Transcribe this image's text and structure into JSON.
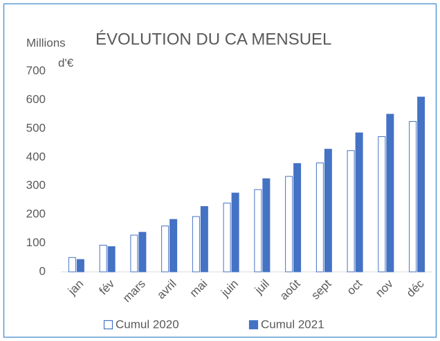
{
  "chart_data": {
    "type": "bar",
    "title": "ÉVOLUTION DU CA MENSUEL",
    "ylabel": [
      "Millions",
      "d'€"
    ],
    "categories": [
      "jan",
      "fév",
      "mars",
      "avril",
      "mai",
      "juin",
      "juil",
      "août",
      "sept",
      "oct",
      "nov",
      "déc"
    ],
    "series": [
      {
        "name": "Cumul 2020",
        "color": "#4472c4",
        "fill": "#ffffff",
        "values": [
          50,
          93,
          128,
          160,
          193,
          240,
          287,
          333,
          380,
          423,
          472,
          525
        ]
      },
      {
        "name": "Cumul 2021",
        "color": "#4472c4",
        "fill": "#4472c4",
        "values": [
          43,
          88,
          138,
          183,
          228,
          275,
          325,
          378,
          428,
          485,
          550,
          610
        ]
      }
    ],
    "ylim": [
      0,
      700
    ],
    "yticks": [
      0,
      100,
      200,
      300,
      400,
      500,
      600,
      700
    ],
    "grid": false,
    "legend": "bottom"
  }
}
